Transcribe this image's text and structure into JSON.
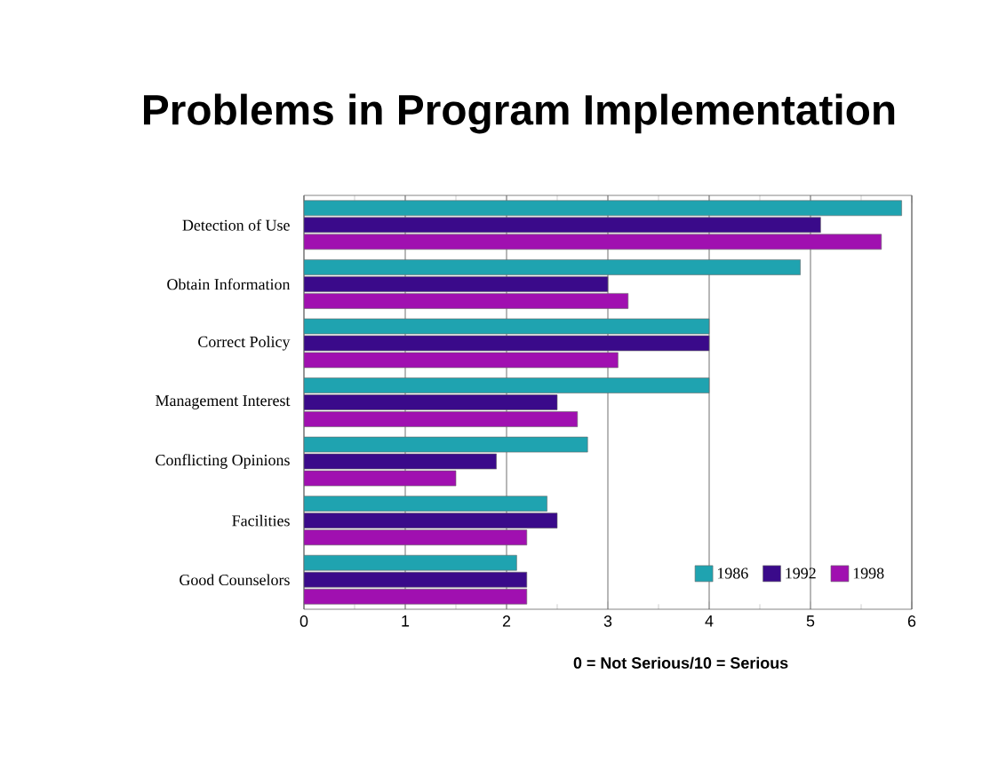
{
  "chart_data": {
    "type": "bar",
    "orientation": "horizontal",
    "title": "Problems in Program Implementation",
    "xlabel": "0 = Not Serious/10 = Serious",
    "categories": [
      "Detection of Use",
      "Obtain Information",
      "Correct Policy",
      "Management Interest",
      "Conflicting Opinions",
      "Facilities",
      "Good Counselors"
    ],
    "series": [
      {
        "name": "1986",
        "color": "#1fa3b0",
        "values": [
          5.9,
          4.9,
          4,
          4,
          2.8,
          2.4,
          2.1
        ]
      },
      {
        "name": "1992",
        "color": "#3a0a8a",
        "values": [
          5.1,
          3,
          4,
          2.5,
          1.9,
          2.5,
          2.2
        ]
      },
      {
        "name": "1998",
        "color": "#a010b0",
        "values": [
          5.7,
          3.2,
          3.1,
          2.7,
          1.5,
          2.2,
          2.2
        ]
      }
    ],
    "xlim": [
      0,
      6
    ],
    "xticks": [
      0,
      1,
      2,
      3,
      4,
      5,
      6
    ],
    "grid": "x",
    "legend": "bottom right"
  }
}
